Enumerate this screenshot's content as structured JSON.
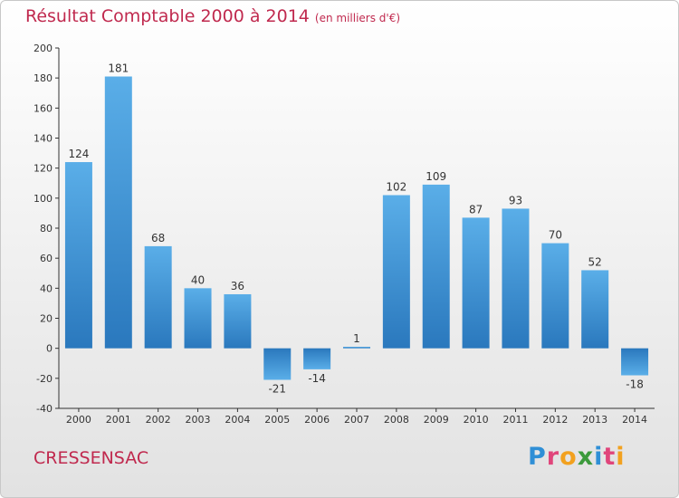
{
  "header": {
    "title": "Résultat Comptable 2000 à 2014",
    "subtitle": "(en milliers d'€)"
  },
  "footer": {
    "commune": "CRESSENSAC",
    "logo_letters": [
      "P",
      "r",
      "o",
      "x",
      "i",
      "t",
      "i"
    ],
    "logo_colors": [
      "#2f8fd6",
      "#e0457b",
      "#f2a11f",
      "#3c9a3c",
      "#2f8fd6",
      "#e0457b",
      "#f2a11f"
    ]
  },
  "chart_data": {
    "type": "bar",
    "title": "Résultat Comptable 2000 à 2014",
    "subtitle": "(en milliers d'€)",
    "categories": [
      "2000",
      "2001",
      "2002",
      "2003",
      "2004",
      "2005",
      "2006",
      "2007",
      "2008",
      "2009",
      "2010",
      "2011",
      "2012",
      "2013",
      "2014"
    ],
    "values": [
      124,
      181,
      68,
      40,
      36,
      -21,
      -14,
      1,
      102,
      109,
      87,
      93,
      70,
      52,
      -18
    ],
    "value_labels": [
      "124",
      "181",
      "68",
      "40",
      "36",
      "-21",
      "-14",
      "1",
      "102",
      "109",
      "87",
      "93",
      "70",
      "52",
      "-18"
    ],
    "ylim": [
      -40,
      200
    ],
    "yticks": [
      -40,
      -20,
      0,
      20,
      40,
      60,
      80,
      100,
      120,
      140,
      160,
      180,
      200
    ],
    "grid": false,
    "colors": {
      "bar_top": "#5aaee8",
      "bar_bottom": "#2a78bd",
      "axis": "#333333",
      "label": "#333333"
    }
  }
}
